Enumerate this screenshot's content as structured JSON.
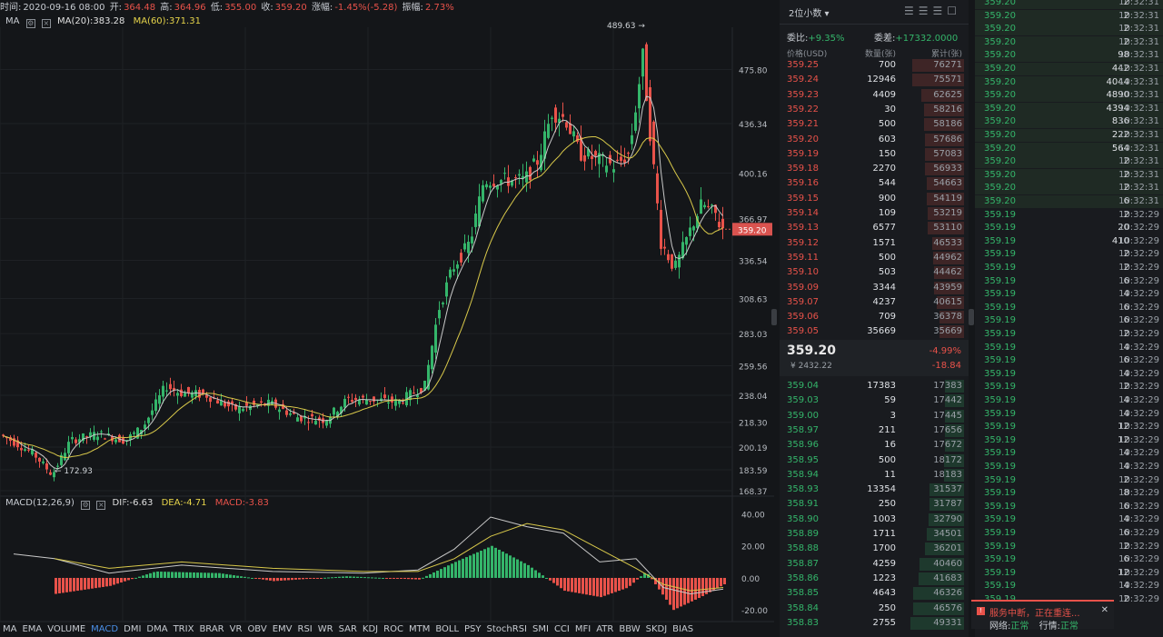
{
  "info": {
    "time_label": "时间:",
    "time": "2020-09-16 08:00",
    "open_label": "开:",
    "open": "364.48",
    "high_label": "高:",
    "high": "364.96",
    "low_label": "低:",
    "low": "355.00",
    "close_label": "收:",
    "close": "359.20",
    "change_label": "涨幅:",
    "change": "-1.45%(-5.28)",
    "amp_label": "振幅:",
    "amp": "2.73%"
  },
  "ma_legend": {
    "name": "MA",
    "ma20": "MA(20):383.28",
    "ma60": "MA(60):371.31"
  },
  "macd_legend": {
    "name": "MACD(12,26,9)",
    "dif": "DIF:-6.63",
    "dea": "DEA:-4.71",
    "macd": "MACD:-3.83"
  },
  "colors": {
    "up": "#34b56a",
    "down": "#e8524a",
    "ma20": "#c9c9c9",
    "ma60": "#d8c84a",
    "current_price_bg": "#d9534f"
  },
  "chart_data": {
    "type": "candlestick",
    "price_axis": [
      "475.80",
      "436.34",
      "400.16",
      "366.97",
      "336.54",
      "308.63",
      "283.03",
      "259.56",
      "238.04",
      "218.30",
      "200.19",
      "183.59",
      "168.37"
    ],
    "current_price": "359.20",
    "high_marker": "489.63",
    "low_marker": "172.93",
    "macd_axis": [
      "40.00",
      "20.00",
      "0.00",
      "-20.00"
    ],
    "price_range": [
      168.37,
      500
    ],
    "macd_range": [
      -25,
      42
    ]
  },
  "indicators": [
    "MA",
    "EMA",
    "VOLUME",
    "MACD",
    "DMI",
    "DMA",
    "TRIX",
    "BRAR",
    "VR",
    "OBV",
    "EMV",
    "RSI",
    "WR",
    "SAR",
    "KDJ",
    "ROC",
    "MTM",
    "BOLL",
    "PSY",
    "StochRSI",
    "SMI",
    "CCI",
    "MFI",
    "ATR",
    "BBW",
    "SKDJ",
    "BIAS"
  ],
  "active_indicator": "MACD",
  "orderbook": {
    "precision": "2位小数",
    "ratio_label": "委比:",
    "ratio": "+9.35%",
    "diff_label": "委差:",
    "diff": "+17332.0000",
    "col_price": "价格(USD)",
    "col_qty": "数量(张)",
    "col_cum": "累计(张)",
    "asks": [
      [
        "359.25",
        "700",
        "76271"
      ],
      [
        "359.24",
        "12946",
        "75571"
      ],
      [
        "359.23",
        "4409",
        "62625"
      ],
      [
        "359.22",
        "30",
        "58216"
      ],
      [
        "359.21",
        "500",
        "58186"
      ],
      [
        "359.20",
        "603",
        "57686"
      ],
      [
        "359.19",
        "150",
        "57083"
      ],
      [
        "359.18",
        "2270",
        "56933"
      ],
      [
        "359.16",
        "544",
        "54663"
      ],
      [
        "359.15",
        "900",
        "54119"
      ],
      [
        "359.14",
        "109",
        "53219"
      ],
      [
        "359.13",
        "6577",
        "53110"
      ],
      [
        "359.12",
        "1571",
        "46533"
      ],
      [
        "359.11",
        "500",
        "44962"
      ],
      [
        "359.10",
        "503",
        "44462"
      ],
      [
        "359.09",
        "3344",
        "43959"
      ],
      [
        "359.07",
        "4237",
        "40615"
      ],
      [
        "359.06",
        "709",
        "36378"
      ],
      [
        "359.05",
        "35669",
        "35669"
      ]
    ],
    "last_price": "359.20",
    "cny": "¥ 2432.22",
    "pct": "-4.99%",
    "chg": "-18.84",
    "bids": [
      [
        "359.04",
        "17383",
        "17383"
      ],
      [
        "359.03",
        "59",
        "17442"
      ],
      [
        "359.00",
        "3",
        "17445"
      ],
      [
        "358.97",
        "211",
        "17656"
      ],
      [
        "358.96",
        "16",
        "17672"
      ],
      [
        "358.95",
        "500",
        "18172"
      ],
      [
        "358.94",
        "11",
        "18183"
      ],
      [
        "358.93",
        "13354",
        "31537"
      ],
      [
        "358.91",
        "250",
        "31787"
      ],
      [
        "358.90",
        "1003",
        "32790"
      ],
      [
        "358.89",
        "1711",
        "34501"
      ],
      [
        "358.88",
        "1700",
        "36201"
      ],
      [
        "358.87",
        "4259",
        "40460"
      ],
      [
        "358.86",
        "1223",
        "41683"
      ],
      [
        "358.85",
        "4643",
        "46326"
      ],
      [
        "358.84",
        "250",
        "46576"
      ],
      [
        "358.83",
        "2755",
        "49331"
      ]
    ]
  },
  "trades": [
    [
      "359.20",
      "2",
      "10:32:31"
    ],
    [
      "359.20",
      "2",
      "10:32:31"
    ],
    [
      "359.20",
      "2",
      "10:32:31"
    ],
    [
      "359.20",
      "2",
      "10:32:31"
    ],
    [
      "359.20",
      "98",
      "10:32:31"
    ],
    [
      "359.20",
      "442",
      "10:32:31"
    ],
    [
      "359.20",
      "4044",
      "10:32:31"
    ],
    [
      "359.20",
      "4890",
      "10:32:31"
    ],
    [
      "359.20",
      "4394",
      "10:32:31"
    ],
    [
      "359.20",
      "836",
      "10:32:31"
    ],
    [
      "359.20",
      "222",
      "10:32:31"
    ],
    [
      "359.20",
      "564",
      "10:32:31"
    ],
    [
      "359.20",
      "2",
      "10:32:31"
    ],
    [
      "359.20",
      "2",
      "10:32:31"
    ],
    [
      "359.20",
      "2",
      "10:32:31"
    ],
    [
      "359.20",
      "6",
      "10:32:31"
    ],
    [
      "359.19",
      "2",
      "10:32:29"
    ],
    [
      "359.19",
      "20",
      "10:32:29"
    ],
    [
      "359.19",
      "410",
      "10:32:29"
    ],
    [
      "359.19",
      "2",
      "10:32:29"
    ],
    [
      "359.19",
      "2",
      "10:32:29"
    ],
    [
      "359.19",
      "6",
      "10:32:29"
    ],
    [
      "359.19",
      "4",
      "10:32:29"
    ],
    [
      "359.19",
      "6",
      "10:32:29"
    ],
    [
      "359.19",
      "6",
      "10:32:29"
    ],
    [
      "359.19",
      "2",
      "10:32:29"
    ],
    [
      "359.19",
      "4",
      "10:32:29"
    ],
    [
      "359.19",
      "6",
      "10:32:29"
    ],
    [
      "359.19",
      "4",
      "10:32:29"
    ],
    [
      "359.19",
      "2",
      "10:32:29"
    ],
    [
      "359.19",
      "4",
      "10:32:29"
    ],
    [
      "359.19",
      "4",
      "10:32:29"
    ],
    [
      "359.19",
      "12",
      "10:32:29"
    ],
    [
      "359.19",
      "12",
      "10:32:29"
    ],
    [
      "359.19",
      "4",
      "10:32:29"
    ],
    [
      "359.19",
      "4",
      "10:32:29"
    ],
    [
      "359.19",
      "2",
      "10:32:29"
    ],
    [
      "359.19",
      "8",
      "10:32:29"
    ],
    [
      "359.19",
      "6",
      "10:32:29"
    ],
    [
      "359.19",
      "4",
      "10:32:29"
    ],
    [
      "359.19",
      "6",
      "10:32:29"
    ],
    [
      "359.19",
      "2",
      "10:32:29"
    ],
    [
      "359.19",
      "6",
      "10:32:29"
    ],
    [
      "359.19",
      "12",
      "10:32:29"
    ],
    [
      "359.19",
      "4",
      "10:32:29"
    ],
    [
      "359.19",
      "2",
      "10:32:29"
    ]
  ],
  "status": {
    "message": "服务中断，正在重连...",
    "net_label": "网络:",
    "net": "正常",
    "quote_label": "行情:",
    "quote": "正常"
  }
}
